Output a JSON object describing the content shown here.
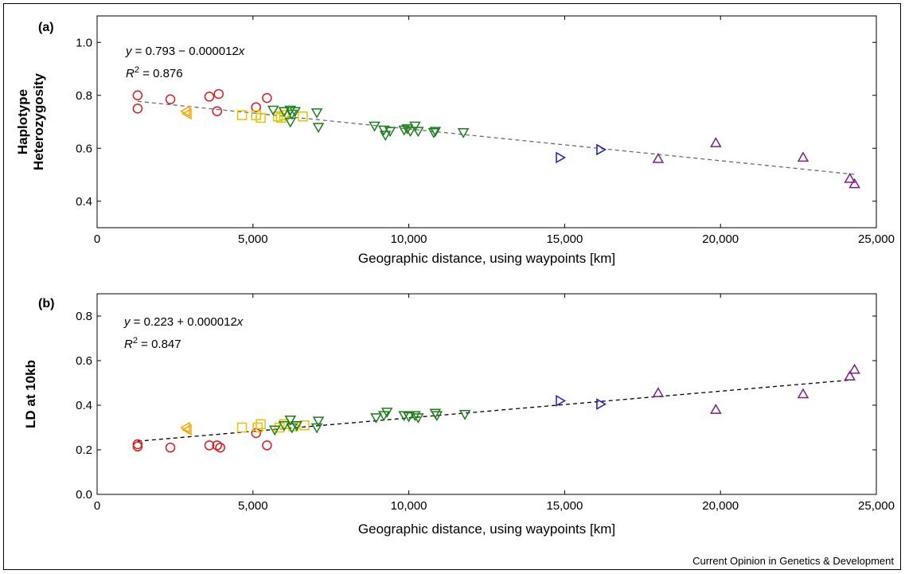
{
  "footer": "Current Opinion in Genetics & Development",
  "colors": {
    "africa": "#e41a1c",
    "middle_east": "#ffa500",
    "europe": "#e6c200",
    "asia": "#1a7f1a",
    "oceania": "#1a1acc",
    "america": "#7b1f8a",
    "fit_a": "#6b6b7b",
    "fit_b": "#000000"
  },
  "chart_data": [
    {
      "panel_label": "(a)",
      "type": "scatter",
      "xlabel": "Geographic distance, using waypoints [km]",
      "ylabel_lines": [
        "Haplotype",
        "Heterozygosity"
      ],
      "xlim": [
        0,
        25000
      ],
      "ylim": [
        0.3,
        1.1
      ],
      "xticks": [
        0,
        5000,
        10000,
        15000,
        20000,
        25000
      ],
      "xtick_labels": [
        "0",
        "5,000",
        "10,000",
        "15,000",
        "20,000",
        "25,000"
      ],
      "yticks": [
        0.4,
        0.6,
        0.8,
        1.0
      ],
      "ytick_labels": [
        "0.4",
        "0.6",
        "0.8",
        "1.0"
      ],
      "equation": "y = 0.793 − 0.000012x",
      "r2": "R² = 0.876",
      "fit": {
        "intercept": 0.793,
        "slope": -1.2e-05,
        "x_range": [
          1300,
          24300
        ]
      },
      "series": [
        {
          "marker": "circle",
          "color_key": "africa",
          "points": [
            [
              1300,
              0.8
            ],
            [
              1300,
              0.75
            ],
            [
              2350,
              0.785
            ],
            [
              3600,
              0.795
            ],
            [
              3900,
              0.805
            ],
            [
              3850,
              0.74
            ],
            [
              5100,
              0.755
            ],
            [
              5450,
              0.79
            ]
          ]
        },
        {
          "marker": "triangle-left",
          "color_key": "middle_east",
          "points": [
            [
              2850,
              0.74
            ],
            [
              2900,
              0.73
            ]
          ]
        },
        {
          "marker": "square",
          "color_key": "europe",
          "points": [
            [
              4650,
              0.725
            ],
            [
              5100,
              0.725
            ],
            [
              5250,
              0.715
            ],
            [
              5800,
              0.72
            ],
            [
              5900,
              0.715
            ],
            [
              6000,
              0.725
            ],
            [
              6600,
              0.72
            ]
          ]
        },
        {
          "marker": "triangle-down",
          "color_key": "asia",
          "points": [
            [
              5650,
              0.745
            ],
            [
              6000,
              0.74
            ],
            [
              6200,
              0.745
            ],
            [
              6250,
              0.73
            ],
            [
              6350,
              0.74
            ],
            [
              6200,
              0.7
            ],
            [
              7050,
              0.735
            ],
            [
              7100,
              0.68
            ],
            [
              8900,
              0.685
            ],
            [
              9200,
              0.67
            ],
            [
              9250,
              0.65
            ],
            [
              9400,
              0.665
            ],
            [
              9850,
              0.67
            ],
            [
              9950,
              0.675
            ],
            [
              10050,
              0.665
            ],
            [
              10200,
              0.685
            ],
            [
              10300,
              0.665
            ],
            [
              10800,
              0.66
            ],
            [
              10850,
              0.665
            ],
            [
              11750,
              0.66
            ]
          ]
        },
        {
          "marker": "triangle-right",
          "color_key": "oceania",
          "points": [
            [
              14850,
              0.565
            ],
            [
              16150,
              0.595
            ]
          ]
        },
        {
          "marker": "triangle-up",
          "color_key": "america",
          "points": [
            [
              18000,
              0.56
            ],
            [
              19850,
              0.62
            ],
            [
              22650,
              0.565
            ],
            [
              24150,
              0.485
            ],
            [
              24300,
              0.465
            ]
          ]
        }
      ]
    },
    {
      "panel_label": "(b)",
      "type": "scatter",
      "xlabel": "Geographic distance, using waypoints [km]",
      "ylabel_lines": [
        "LD at 10kb"
      ],
      "xlim": [
        0,
        25000
      ],
      "ylim": [
        0.0,
        0.9
      ],
      "xticks": [
        0,
        5000,
        10000,
        15000,
        20000,
        25000
      ],
      "xtick_labels": [
        "0",
        "5,000",
        "10,000",
        "15,000",
        "20,000",
        "25,000"
      ],
      "yticks": [
        0.0,
        0.2,
        0.4,
        0.6,
        0.8
      ],
      "ytick_labels": [
        "0.0",
        "0.2",
        "0.4",
        "0.6",
        "0.8"
      ],
      "equation": "y = 0.223 + 0.000012x",
      "r2": "R² = 0.847",
      "fit": {
        "intercept": 0.223,
        "slope": 1.2e-05,
        "x_range": [
          1300,
          24300
        ]
      },
      "series": [
        {
          "marker": "circle",
          "color_key": "africa",
          "points": [
            [
              1300,
              0.225
            ],
            [
              1300,
              0.215
            ],
            [
              2350,
              0.21
            ],
            [
              3600,
              0.22
            ],
            [
              3850,
              0.22
            ],
            [
              3950,
              0.21
            ],
            [
              5100,
              0.275
            ],
            [
              5450,
              0.22
            ]
          ]
        },
        {
          "marker": "triangle-left",
          "color_key": "middle_east",
          "points": [
            [
              2850,
              0.3
            ],
            [
              2900,
              0.29
            ]
          ]
        },
        {
          "marker": "square",
          "color_key": "europe",
          "points": [
            [
              4650,
              0.3
            ],
            [
              5150,
              0.3
            ],
            [
              5250,
              0.315
            ],
            [
              5850,
              0.3
            ],
            [
              6000,
              0.315
            ],
            [
              6300,
              0.305
            ],
            [
              6650,
              0.31
            ]
          ]
        },
        {
          "marker": "triangle-down",
          "color_key": "asia",
          "points": [
            [
              5700,
              0.29
            ],
            [
              6000,
              0.31
            ],
            [
              6200,
              0.335
            ],
            [
              6250,
              0.3
            ],
            [
              6400,
              0.31
            ],
            [
              7100,
              0.33
            ],
            [
              7050,
              0.3
            ],
            [
              8950,
              0.345
            ],
            [
              9200,
              0.355
            ],
            [
              9300,
              0.37
            ],
            [
              9850,
              0.355
            ],
            [
              10000,
              0.35
            ],
            [
              10200,
              0.355
            ],
            [
              10300,
              0.345
            ],
            [
              10850,
              0.365
            ],
            [
              10900,
              0.355
            ],
            [
              11800,
              0.36
            ]
          ]
        },
        {
          "marker": "triangle-right",
          "color_key": "oceania",
          "points": [
            [
              14850,
              0.42
            ],
            [
              16150,
              0.405
            ]
          ]
        },
        {
          "marker": "triangle-up",
          "color_key": "america",
          "points": [
            [
              18000,
              0.455
            ],
            [
              19850,
              0.38
            ],
            [
              22650,
              0.45
            ],
            [
              24150,
              0.53
            ],
            [
              24300,
              0.56
            ]
          ]
        }
      ]
    }
  ]
}
